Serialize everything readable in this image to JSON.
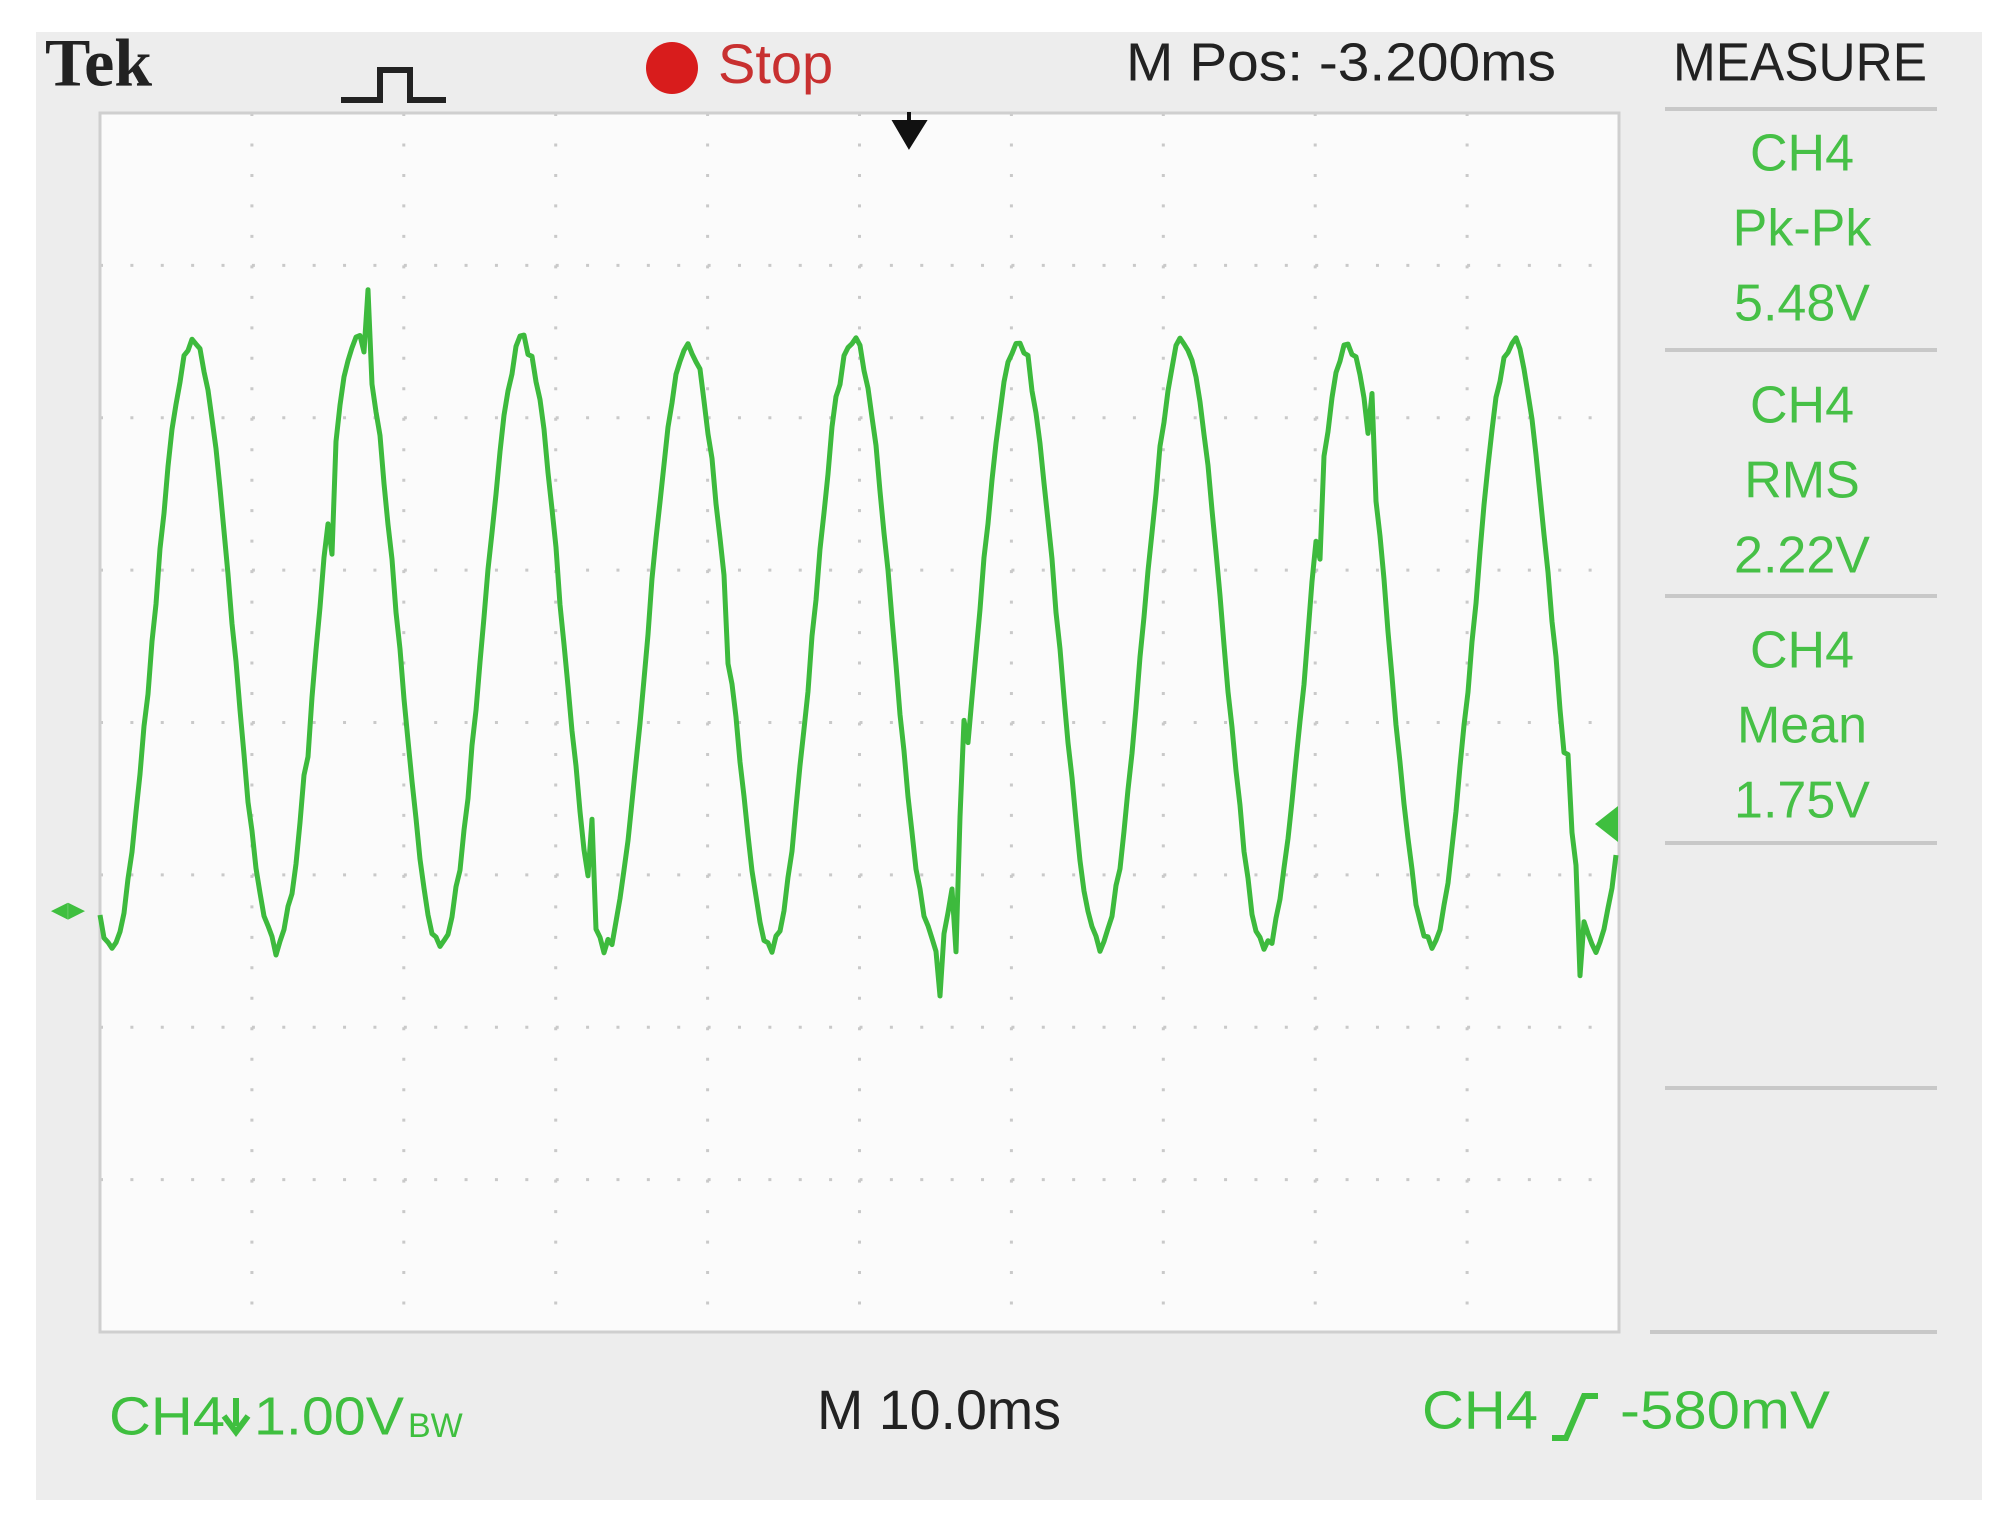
{
  "header": {
    "brand": "Tek",
    "status": "Stop",
    "position": "M Pos: -3.200ms",
    "menu": "MEASURE"
  },
  "measurements": [
    {
      "channel": "CH4",
      "label": "Pk-Pk",
      "value": "5.48V"
    },
    {
      "channel": "CH4",
      "label": "RMS",
      "value": "2.22V"
    },
    {
      "channel": "CH4",
      "label": "Mean",
      "value": "1.75V"
    }
  ],
  "footer": {
    "channel": "CH4",
    "scale": "1.00V",
    "bandwidth": "BW",
    "timebase": "M 10.0ms",
    "trigger_channel": "CH4",
    "trigger_level": "-580mV"
  }
}
